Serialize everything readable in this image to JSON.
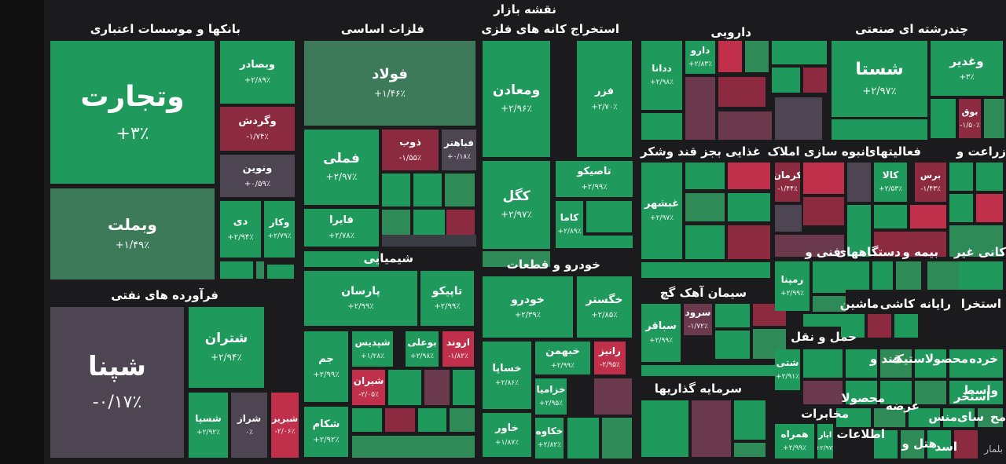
{
  "page": {
    "title": "نقشه بازار",
    "watermark": "بلمار"
  },
  "colors": {
    "g1": "#1f9a5c",
    "g2": "#2e8b57",
    "g3": "#3d7a5a",
    "gd": "#2d5a46",
    "r1": "#c0304a",
    "r2": "#8c2a40",
    "r3": "#6a3a4c",
    "n": "#4e4553",
    "n2": "#3c3c44"
  },
  "sectors": [
    {
      "label": "بانکها و موسسات اعتباری"
    },
    {
      "label": "فلزات اساسی"
    },
    {
      "label": "استخراج کانه های فلزی"
    },
    {
      "label": "دارویی"
    },
    {
      "label": "چندرشته ای صنعتی"
    },
    {
      "label": "فرآورده های نفتی"
    },
    {
      "label": "شیمیایی"
    },
    {
      "label": "خودرو و قطعات"
    },
    {
      "label": "غذایی بجز قند وشکر"
    },
    {
      "label": "انبوه سازی املاک"
    },
    {
      "label": "فعالیتهای"
    },
    {
      "label": "زراعت و"
    },
    {
      "label": "سیمان آهک گچ"
    },
    {
      "label": "سرمایه گذاریها"
    },
    {
      "label": "فنی و"
    },
    {
      "label": "دستگاههای"
    },
    {
      "label": "بیمه و"
    },
    {
      "label": "کانی غیر"
    },
    {
      "label": "ماشین"
    },
    {
      "label": "کاشی"
    },
    {
      "label": "رایانه"
    },
    {
      "label": "استخرا"
    },
    {
      "label": "حمل و نقل"
    },
    {
      "label": "قند و"
    },
    {
      "label": "لاستیک"
    },
    {
      "label": "محصو"
    },
    {
      "label": "خرده"
    },
    {
      "label": "محصولا"
    },
    {
      "label": "واسط"
    },
    {
      "label": "عرضه"
    },
    {
      "label": "استخر"
    },
    {
      "label": "مخابرات"
    },
    {
      "label": "اطلاعات"
    },
    {
      "label": "هتل و"
    },
    {
      "label": "سای"
    },
    {
      "label": "منس"
    },
    {
      "label": "مح"
    },
    {
      "label": "اسد"
    }
  ],
  "tiles": [
    {
      "name": "وتجارت",
      "change": "+۳٪"
    },
    {
      "name": "وبملت",
      "change": "+۱/۴۹٪"
    },
    {
      "name": "وبصادر",
      "change": "+۲/۸۹٪"
    },
    {
      "name": "وگردش",
      "change": "-۱/۷۴٪"
    },
    {
      "name": "ونوین",
      "change": "+۰/۵۹٪"
    },
    {
      "name": "دی",
      "change": "+۲/۹۴٪"
    },
    {
      "name": "وکار",
      "change": "+۲/۷۹٪"
    },
    {
      "name": "شپنا",
      "change": "-۰/۱۷٪"
    },
    {
      "name": "شتران",
      "change": "+۲/۹۴٪"
    },
    {
      "name": "شسپا",
      "change": "+۲/۹۲٪"
    },
    {
      "name": "شراز",
      "change": "۰٪"
    },
    {
      "name": "شبریز",
      "change": "-۲/۰۶٪"
    },
    {
      "name": "فولاد",
      "change": "+۱/۴۶٪"
    },
    {
      "name": "فملی",
      "change": "+۲/۹۷٪"
    },
    {
      "name": "ذوب",
      "change": "-۱/۵۵٪"
    },
    {
      "name": "فباهنر",
      "change": "+۰/۱۸٪"
    },
    {
      "name": "فایرا",
      "change": "+۲/۷۸٪"
    },
    {
      "name": "ومعادن",
      "change": "+۲/۹۶٪"
    },
    {
      "name": "فزر",
      "change": "+۲/۷۰٪"
    },
    {
      "name": "کگل",
      "change": "+۲/۹۷٪"
    },
    {
      "name": "تاصیکو",
      "change": "+۲/۹۹٪"
    },
    {
      "name": "کاما",
      "change": "+۲/۸۹٪"
    },
    {
      "name": "ددانا",
      "change": "+۲/۹۸٪"
    },
    {
      "name": "دارو",
      "change": "+۲/۸۳٪"
    },
    {
      "name": "شستا",
      "change": "+۲/۹۷٪"
    },
    {
      "name": "وغدیر",
      "change": "+۳٪"
    },
    {
      "name": "بوق",
      "change": "-۱/۵۰٪"
    },
    {
      "name": "پارسان",
      "change": "+۲/۹۹٪"
    },
    {
      "name": "تاپیکو",
      "change": "+۲/۹۹٪"
    },
    {
      "name": "جم",
      "change": "+۲/۹۹٪"
    },
    {
      "name": "شپدیس",
      "change": "+۱/۲۸٪"
    },
    {
      "name": "بوعلی",
      "change": "+۲/۹۸٪"
    },
    {
      "name": "اروند",
      "change": "-۱/۸۲٪"
    },
    {
      "name": "شیران",
      "change": "-۲/۰۵٪"
    },
    {
      "name": "شکام",
      "change": "+۲/۹۲٪"
    },
    {
      "name": "خودرو",
      "change": "+۲/۳۹٪"
    },
    {
      "name": "خگستر",
      "change": "+۲/۸۵٪"
    },
    {
      "name": "خساپا",
      "change": "+۲/۸۶٪"
    },
    {
      "name": "خبهمن",
      "change": "+۲/۹۹٪"
    },
    {
      "name": "رانیز",
      "change": "-۲/۹۵٪"
    },
    {
      "name": "خزامیا",
      "change": "+۲/۹۵٪"
    },
    {
      "name": "خاور",
      "change": "+۱/۸۷٪"
    },
    {
      "name": "خکاوه",
      "change": "+۲/۸۲٪"
    },
    {
      "name": "غبشهر",
      "change": "+۲/۹۷٪"
    },
    {
      "name": "کرمان",
      "change": "-۱/۴۴٪"
    },
    {
      "name": "کالا",
      "change": "+۲/۵۳٪"
    },
    {
      "name": "برس",
      "change": "-۱/۴۳٪"
    },
    {
      "name": "سباقر",
      "change": "+۲/۹۹٪"
    },
    {
      "name": "سرود",
      "change": "-۱/۷۲٪"
    },
    {
      "name": "رمپنا",
      "change": "+۲/۹۹٪"
    },
    {
      "name": "شتی",
      "change": "+۲/۹۱٪"
    },
    {
      "name": "همراه",
      "change": "+۲/۹۹٪"
    },
    {
      "name": "اپار",
      "change": "+۲/۹۷٪"
    }
  ]
}
